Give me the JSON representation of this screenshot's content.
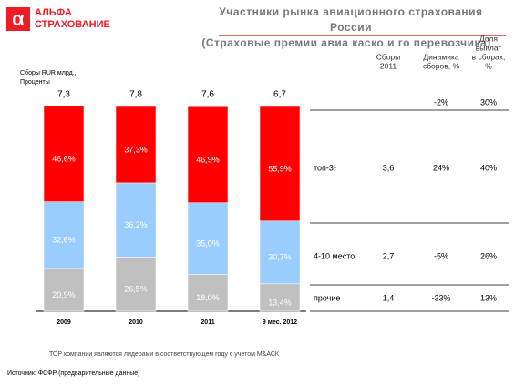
{
  "logo": {
    "symbol": "α",
    "lines": [
      "АЛЬФА",
      "СТРАХОВАНИЕ"
    ]
  },
  "header": {
    "title_lines": [
      "Участники рынка авиационного страхования",
      "России"
    ],
    "subtitle": "(Страховые премии авиа каско и го перевозчика)"
  },
  "chart_data": {
    "type": "stacked_bar",
    "axis_label_lines": [
      "Сборы RUR млрд.,",
      "Проценты"
    ],
    "categories": [
      "2009",
      "2010",
      "2011",
      "9 мес. 2012"
    ],
    "ylim": [
      0,
      100
    ],
    "series": [
      {
        "name": "прочие",
        "color": "#c0c0c0",
        "values": [
          20.9,
          26.5,
          18.0,
          13.4
        ],
        "value_labels": [
          "20,9%",
          "26,5%",
          "18,0%",
          "13,4%"
        ]
      },
      {
        "name": "4-10 место",
        "color": "#99ccff",
        "values": [
          32.6,
          36.2,
          35.0,
          30.7
        ],
        "value_labels": [
          "32,6%",
          "36,2%",
          "35,0%",
          "30,7%"
        ]
      },
      {
        "name": "топ-3¹",
        "color": "#ff0000",
        "values": [
          46.6,
          37.3,
          46.9,
          55.9
        ],
        "value_labels": [
          "46,6%",
          "37,3%",
          "46,9%",
          "55,9%"
        ]
      }
    ],
    "totals": {
      "values": [
        7.3,
        7.8,
        7.6,
        6.7
      ],
      "value_labels": [
        "7,3",
        "7,8",
        "7,6",
        "6,7"
      ]
    }
  },
  "table": {
    "columns": [
      [
        "Сборы",
        "2011"
      ],
      [
        "Динамика",
        "сборов, %"
      ],
      [
        "Доля",
        "выплат",
        "в сборах,",
        "%"
      ]
    ],
    "total_row": [
      "-2%",
      "30%"
    ],
    "rows": [
      [
        "топ-3¹",
        "3,6",
        "24%",
        "40%"
      ],
      [
        "4-10 место",
        "2,7",
        "-5%",
        "26%"
      ],
      [
        "прочие",
        "1,4",
        "-33%",
        "13%"
      ]
    ]
  },
  "footnote": "ТОР компании являются лидерами в соответствующем году с учетом М&АСК",
  "source": "Источник: ФСФР (предварительные данные)"
}
